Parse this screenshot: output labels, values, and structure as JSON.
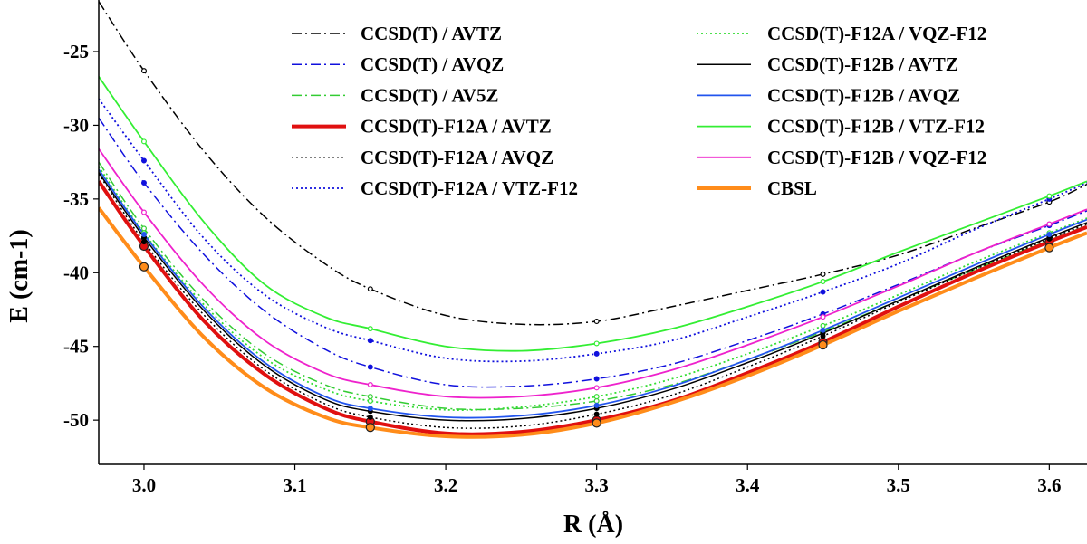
{
  "chart_data": {
    "type": "line",
    "xlabel": "R (Å)",
    "ylabel": "E (cm-1)",
    "xlim": [
      2.97,
      3.625
    ],
    "ylim": [
      -53.0,
      -21.5
    ],
    "xticks": [
      3.0,
      3.1,
      3.2,
      3.3,
      3.4,
      3.5,
      3.6
    ],
    "xtick_labels": [
      "3.0",
      "3.1",
      "3.2",
      "3.3",
      "3.4",
      "3.5",
      "3.6"
    ],
    "yticks": [
      -25,
      -30,
      -35,
      -40,
      -45,
      -50
    ],
    "ytick_labels": [
      "-25",
      "-30",
      "-35",
      "-40",
      "-45",
      "-50"
    ],
    "grid": false,
    "legend_placement": "top",
    "sampled_x": [
      3.0,
      3.15,
      3.3,
      3.45,
      3.6
    ],
    "series": [
      {
        "name": "CCSD(T) / AVTZ",
        "color": "#000000",
        "dash": "dashdot",
        "width": 1.5,
        "marker": "open",
        "x": [
          2.97,
          3.0,
          3.04,
          3.08,
          3.12,
          3.15,
          3.2,
          3.25,
          3.3,
          3.35,
          3.4,
          3.45,
          3.5,
          3.55,
          3.6,
          3.625
        ],
        "y": [
          -21.6,
          -26.3,
          -31.8,
          -36.2,
          -39.4,
          -41.1,
          -42.9,
          -43.5,
          -43.3,
          -42.3,
          -41.2,
          -40.1,
          -38.8,
          -37.0,
          -35.2,
          -34.0
        ]
      },
      {
        "name": "CCSD(T) / AVQZ",
        "color": "#1010dd",
        "dash": "dashdot",
        "width": 1.5,
        "marker": "filled",
        "x": [
          2.97,
          3.0,
          3.04,
          3.08,
          3.12,
          3.15,
          3.2,
          3.25,
          3.3,
          3.35,
          3.4,
          3.45,
          3.5,
          3.55,
          3.6,
          3.625
        ],
        "y": [
          -29.5,
          -33.9,
          -38.8,
          -42.6,
          -45.2,
          -46.4,
          -47.6,
          -47.7,
          -47.2,
          -46.2,
          -44.6,
          -42.8,
          -40.8,
          -38.7,
          -36.8,
          -35.8
        ]
      },
      {
        "name": "CCSD(T) / AV5Z",
        "color": "#33cc33",
        "dash": "dashdot",
        "width": 1.5,
        "marker": "open",
        "x": [
          2.97,
          3.0,
          3.04,
          3.08,
          3.12,
          3.15,
          3.2,
          3.25,
          3.3,
          3.35,
          3.4,
          3.45,
          3.5,
          3.55,
          3.6,
          3.625
        ],
        "y": [
          -32.5,
          -37.0,
          -41.9,
          -45.5,
          -47.6,
          -48.4,
          -49.2,
          -49.2,
          -48.7,
          -47.6,
          -45.9,
          -44.0,
          -41.9,
          -39.8,
          -37.8,
          -36.8
        ]
      },
      {
        "name": "CCSD(T)-F12A / AVTZ",
        "color": "#e01010",
        "dash": "solid",
        "width": 4,
        "marker": "filled",
        "x": [
          2.97,
          3.0,
          3.04,
          3.08,
          3.12,
          3.15,
          3.2,
          3.25,
          3.3,
          3.35,
          3.4,
          3.45,
          3.5,
          3.55,
          3.6,
          3.625
        ],
        "y": [
          -33.8,
          -38.2,
          -43.3,
          -46.9,
          -49.2,
          -50.1,
          -50.9,
          -50.8,
          -50.0,
          -48.7,
          -46.8,
          -44.7,
          -42.3,
          -40.0,
          -37.9,
          -36.9
        ]
      },
      {
        "name": "CCSD(T)-F12A / AVQZ",
        "color": "#000000",
        "dash": "dotted",
        "width": 1.5,
        "marker": "filled",
        "x": [
          2.97,
          3.0,
          3.04,
          3.08,
          3.12,
          3.15,
          3.2,
          3.25,
          3.3,
          3.35,
          3.4,
          3.45,
          3.5,
          3.55,
          3.6,
          3.625
        ],
        "y": [
          -33.3,
          -37.9,
          -42.9,
          -46.6,
          -48.9,
          -49.8,
          -50.5,
          -50.4,
          -49.6,
          -48.3,
          -46.4,
          -44.3,
          -42.0,
          -39.8,
          -37.7,
          -36.7
        ]
      },
      {
        "name": "CCSD(T)-F12A / VTZ-F12",
        "color": "#1010dd",
        "dash": "dotted",
        "width": 1.8,
        "marker": "filled",
        "x": [
          2.97,
          3.0,
          3.04,
          3.08,
          3.12,
          3.15,
          3.2,
          3.25,
          3.3,
          3.35,
          3.4,
          3.45,
          3.5,
          3.55,
          3.6,
          3.625
        ],
        "y": [
          -28.2,
          -32.4,
          -37.7,
          -41.5,
          -43.7,
          -44.6,
          -45.8,
          -46.0,
          -45.5,
          -44.6,
          -43.0,
          -41.3,
          -39.4,
          -37.1,
          -35.0,
          -33.9
        ]
      },
      {
        "name": "CCSD(T)-F12A / VQZ-F12",
        "color": "#33dd33",
        "dash": "dotted",
        "width": 1.8,
        "marker": "open",
        "x": [
          2.97,
          3.0,
          3.04,
          3.08,
          3.12,
          3.15,
          3.2,
          3.25,
          3.3,
          3.35,
          3.4,
          3.45,
          3.5,
          3.55,
          3.6,
          3.625
        ],
        "y": [
          -32.8,
          -37.3,
          -42.2,
          -45.8,
          -47.9,
          -48.7,
          -49.3,
          -49.1,
          -48.4,
          -47.2,
          -45.5,
          -43.6,
          -41.5,
          -39.3,
          -37.3,
          -36.3
        ]
      },
      {
        "name": "CCSD(T)-F12B / AVTZ",
        "color": "#000000",
        "dash": "solid",
        "width": 1.5,
        "marker": "filled",
        "x": [
          2.97,
          3.0,
          3.04,
          3.08,
          3.12,
          3.15,
          3.2,
          3.25,
          3.3,
          3.35,
          3.4,
          3.45,
          3.5,
          3.55,
          3.6,
          3.625
        ],
        "y": [
          -33.2,
          -37.6,
          -42.6,
          -46.3,
          -48.6,
          -49.4,
          -50.0,
          -49.9,
          -49.2,
          -47.9,
          -46.1,
          -44.1,
          -41.9,
          -39.7,
          -37.6,
          -36.6
        ]
      },
      {
        "name": "CCSD(T)-F12B / AVQZ",
        "color": "#2255ee",
        "dash": "solid",
        "width": 1.8,
        "marker": "filled",
        "x": [
          2.97,
          3.0,
          3.04,
          3.08,
          3.12,
          3.15,
          3.2,
          3.25,
          3.3,
          3.35,
          3.4,
          3.45,
          3.5,
          3.55,
          3.6,
          3.625
        ],
        "y": [
          -33.0,
          -37.4,
          -42.4,
          -46.1,
          -48.4,
          -49.2,
          -49.8,
          -49.7,
          -49.0,
          -47.7,
          -45.9,
          -43.9,
          -41.7,
          -39.5,
          -37.4,
          -36.4
        ]
      },
      {
        "name": "CCSD(T)-F12B / VTZ-F12",
        "color": "#33ee33",
        "dash": "solid",
        "width": 1.8,
        "marker": "open",
        "x": [
          2.97,
          3.0,
          3.04,
          3.08,
          3.12,
          3.15,
          3.2,
          3.25,
          3.3,
          3.35,
          3.4,
          3.45,
          3.5,
          3.55,
          3.6,
          3.625
        ],
        "y": [
          -26.7,
          -31.1,
          -36.6,
          -40.8,
          -43.0,
          -43.8,
          -45.0,
          -45.3,
          -44.8,
          -43.8,
          -42.3,
          -40.6,
          -38.6,
          -36.7,
          -34.8,
          -33.8
        ]
      },
      {
        "name": "CCSD(T)-F12B / VQZ-F12",
        "color": "#ee22cc",
        "dash": "solid",
        "width": 1.8,
        "marker": "open",
        "x": [
          2.97,
          3.0,
          3.04,
          3.08,
          3.12,
          3.15,
          3.2,
          3.25,
          3.3,
          3.35,
          3.4,
          3.45,
          3.5,
          3.55,
          3.6,
          3.625
        ],
        "y": [
          -31.6,
          -35.9,
          -40.9,
          -44.6,
          -46.8,
          -47.6,
          -48.4,
          -48.4,
          -47.8,
          -46.6,
          -44.9,
          -43.0,
          -40.9,
          -38.7,
          -36.7,
          -35.7
        ]
      },
      {
        "name": "CBSL",
        "color": "#ff8c1a",
        "dash": "solid",
        "width": 4,
        "marker": "filled",
        "x": [
          2.97,
          3.0,
          3.04,
          3.08,
          3.12,
          3.15,
          3.2,
          3.25,
          3.3,
          3.35,
          3.4,
          3.45,
          3.5,
          3.55,
          3.6,
          3.625
        ],
        "y": [
          -35.6,
          -39.6,
          -44.4,
          -47.8,
          -49.8,
          -50.5,
          -51.1,
          -51.0,
          -50.2,
          -48.8,
          -47.0,
          -44.9,
          -42.6,
          -40.4,
          -38.3,
          -37.3
        ]
      }
    ]
  }
}
